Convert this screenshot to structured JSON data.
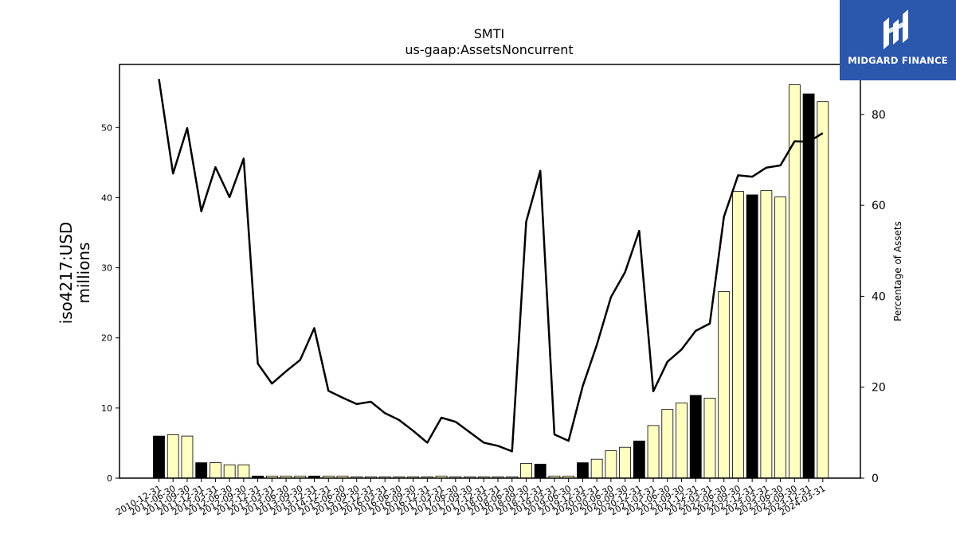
{
  "logo": {
    "name": "MIDGARD FINANCE"
  },
  "chart_data": {
    "type": "bar",
    "title": "SMTI",
    "subtitle": "us-gaap:AssetsNoncurrent",
    "ylabel": "iso4217:USD\nmillions",
    "y2label": "Percentage of Assets",
    "ylim": [
      0,
      59
    ],
    "y2lim": [
      0,
      91
    ],
    "yticks": [
      0,
      10,
      20,
      30,
      40,
      50
    ],
    "y2ticks": [
      0,
      20,
      40,
      60,
      80
    ],
    "grid": false,
    "categories": [
      "2010-12-31",
      "2011-06-30",
      "2011-09-30",
      "2011-12-31",
      "2012-03-31",
      "2012-06-30",
      "2012-09-30",
      "2012-12-31",
      "2013-03-31",
      "2013-06-30",
      "2013-09-30",
      "2013-12-31",
      "2014-12-31",
      "2015-06-30",
      "2015-09-30",
      "2015-12-31",
      "2016-03-31",
      "2016-06-30",
      "2016-09-30",
      "2016-12-31",
      "2017-03-31",
      "2017-06-30",
      "2017-09-30",
      "2017-12-31",
      "2018-03-31",
      "2018-06-30",
      "2018-09-30",
      "2018-12-31",
      "2019-03-31",
      "2019-06-30",
      "2019-12-31",
      "2020-03-31",
      "2020-06-30",
      "2020-09-30",
      "2020-12-31",
      "2021-03-31",
      "2021-06-30",
      "2021-09-30",
      "2021-12-31",
      "2022-03-31",
      "2022-06-30",
      "2022-09-30",
      "2022-12-31",
      "2023-03-31",
      "2023-06-30",
      "2023-09-30",
      "2023-12-31",
      "2024-03-31"
    ],
    "series": [
      {
        "type": "bar",
        "values": [
          6.0,
          6.2,
          6.0,
          2.2,
          2.2,
          1.9,
          1.9,
          0.3,
          0.3,
          0.3,
          0.3,
          0.3,
          0.3,
          0.3,
          0.2,
          0.2,
          0.2,
          0.2,
          0.2,
          0.2,
          0.3,
          0.2,
          0.2,
          0.2,
          0.2,
          0.2,
          2.1,
          2.0,
          0.3,
          0.3,
          2.2,
          2.7,
          3.9,
          4.4,
          5.3,
          7.5,
          9.8,
          10.7,
          11.8,
          11.4,
          26.6,
          40.9,
          40.4,
          41.0,
          40.1,
          56.1,
          54.8,
          53.7
        ],
        "colors": [
          "#000000",
          "#ffffc0",
          "#ffffc0",
          "#000000",
          "#ffffc0",
          "#ffffc0",
          "#ffffc0",
          "#000000",
          "#ffffc0",
          "#ffffc0",
          "#ffffc0",
          "#000000",
          "#ffffc0",
          "#ffffc0",
          "#ffffc0",
          "#ffffc0",
          "#ffffc0",
          "#ffffc0",
          "#ffffc0",
          "#ffffc0",
          "#ffffc0",
          "#ffffc0",
          "#ffffc0",
          "#ffffc0",
          "#ffffc0",
          "#ffffc0",
          "#ffffc0",
          "#000000",
          "#ffffc0",
          "#ffffc0",
          "#000000",
          "#ffffc0",
          "#ffffc0",
          "#ffffc0",
          "#000000",
          "#ffffc0",
          "#ffffc0",
          "#ffffc0",
          "#000000",
          "#ffffc0",
          "#ffffc0",
          "#ffffc0",
          "#000000",
          "#ffffc0",
          "#ffffc0",
          "#ffffc0",
          "#000000",
          "#ffffc0"
        ]
      },
      {
        "type": "line",
        "axis": "right",
        "color": "#000000",
        "values": [
          87.8,
          67.0,
          77.0,
          58.7,
          68.4,
          61.8,
          70.3,
          25.2,
          20.8,
          23.5,
          26.0,
          33.0,
          19.2,
          17.7,
          16.3,
          16.8,
          14.3,
          12.8,
          10.4,
          7.8,
          13.3,
          12.4,
          10.1,
          7.8,
          7.1,
          5.9,
          56.4,
          67.6,
          9.6,
          8.2,
          20.2,
          29.3,
          39.8,
          45.3,
          54.4,
          19.1,
          25.6,
          28.3,
          32.4,
          34.0,
          57.5,
          66.6,
          66.3,
          68.3,
          68.8,
          74.1,
          74.0,
          75.9
        ]
      }
    ]
  }
}
